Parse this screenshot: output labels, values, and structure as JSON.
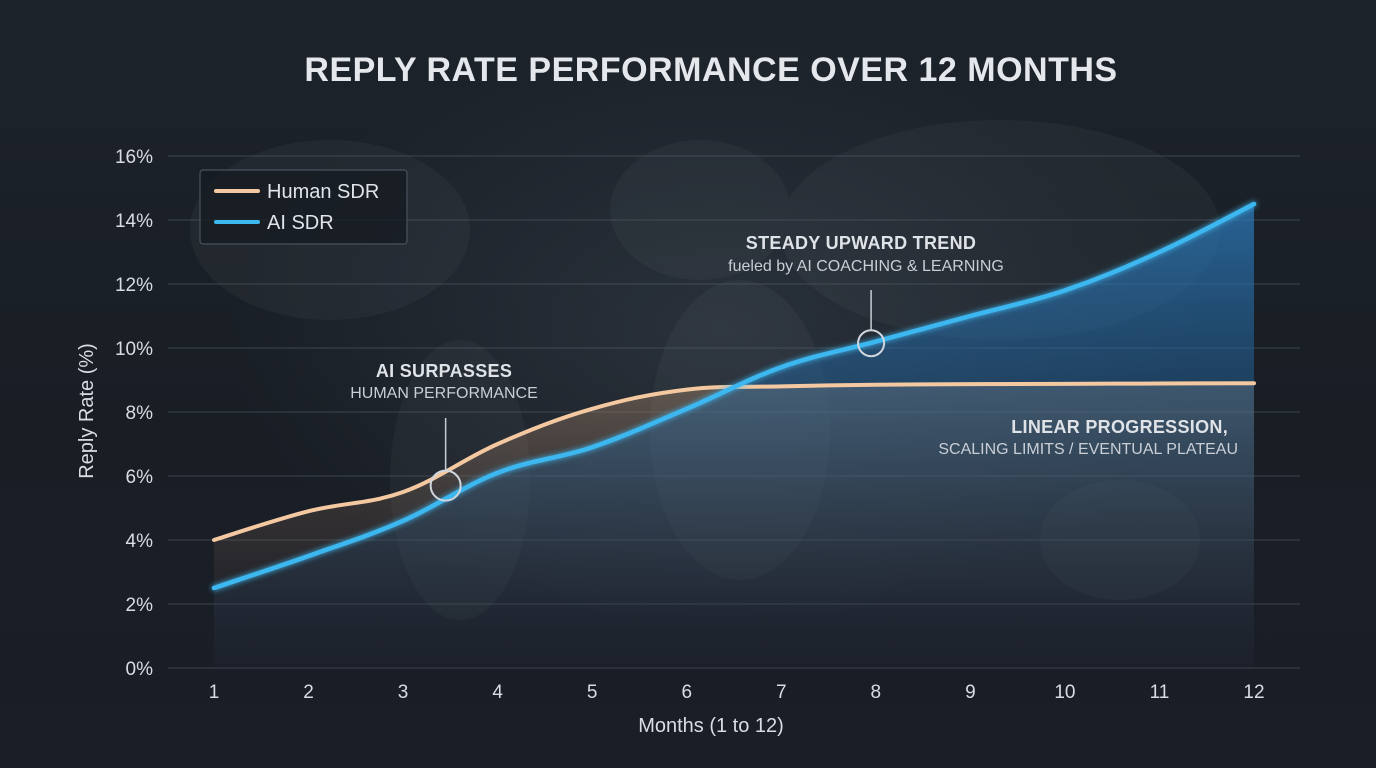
{
  "chart_data": {
    "type": "line",
    "title": "REPLY RATE PERFORMANCE OVER 12 MONTHS",
    "xlabel": "Months (1 to 12)",
    "ylabel": "Reply Rate (%)",
    "x": [
      1,
      2,
      3,
      4,
      5,
      6,
      7,
      8,
      9,
      10,
      11,
      12
    ],
    "x_tick_labels": [
      "1",
      "2",
      "3",
      "4",
      "5",
      "6",
      "7",
      "8",
      "9",
      "10",
      "11",
      "12"
    ],
    "xlim": [
      0.5,
      12.5
    ],
    "ylim": [
      0,
      16
    ],
    "y_ticks": [
      0,
      2,
      4,
      6,
      8,
      10,
      12,
      14,
      16
    ],
    "y_tick_labels": [
      "0%",
      "2%",
      "4%",
      "6%",
      "8%",
      "10%",
      "12%",
      "14%",
      "16%"
    ],
    "grid": true,
    "legend_position": "top-left",
    "series": [
      {
        "name": "Human SDR",
        "color": "#f4c8a0",
        "values": [
          4.0,
          4.9,
          5.5,
          7.0,
          8.1,
          8.7,
          8.8,
          8.85,
          8.87,
          8.88,
          8.89,
          8.9
        ]
      },
      {
        "name": "AI SDR",
        "color": "#3db7f0",
        "values": [
          2.5,
          3.5,
          4.6,
          6.1,
          6.9,
          8.1,
          9.4,
          10.2,
          11.0,
          11.8,
          13.0,
          14.5
        ]
      }
    ],
    "annotations": [
      {
        "heading": "AI SURPASSES",
        "text": "HUMAN PERFORMANCE",
        "x": 3.45,
        "y": 5.7
      },
      {
        "heading": "STEADY UPWARD TREND",
        "text": "fueled by AI COACHING & LEARNING",
        "x": 7.95,
        "y": 10.15
      },
      {
        "heading": "LINEAR PROGRESSION,",
        "text": "SCALING LIMITS / EVENTUAL PLATEAU"
      }
    ]
  }
}
